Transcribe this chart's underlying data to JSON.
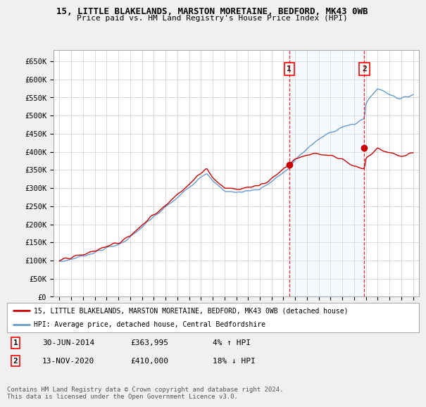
{
  "title": "15, LITTLE BLAKELANDS, MARSTON MORETAINE, BEDFORD, MK43 0WB",
  "subtitle": "Price paid vs. HM Land Registry's House Price Index (HPI)",
  "yticks": [
    0,
    50000,
    100000,
    150000,
    200000,
    250000,
    300000,
    350000,
    400000,
    450000,
    500000,
    550000,
    600000,
    650000
  ],
  "ytick_labels": [
    "£0",
    "£50K",
    "£100K",
    "£150K",
    "£200K",
    "£250K",
    "£300K",
    "£350K",
    "£400K",
    "£450K",
    "£500K",
    "£550K",
    "£600K",
    "£650K"
  ],
  "ylim": [
    0,
    680000
  ],
  "sale1_date_str": "30-JUN-2014",
  "sale1_price": 363995,
  "sale1_hpi_pct": "4% ↑ HPI",
  "sale1_x": 2014.5,
  "sale2_date_str": "13-NOV-2020",
  "sale2_price": 410000,
  "sale2_hpi_pct": "18% ↓ HPI",
  "sale2_x": 2020.87,
  "legend_line1": "15, LITTLE BLAKELANDS, MARSTON MORETAINE, BEDFORD, MK43 0WB (detached house)",
  "legend_line2": "HPI: Average price, detached house, Central Bedfordshire",
  "footnote": "Contains HM Land Registry data © Crown copyright and database right 2024.\nThis data is licensed under the Open Government Licence v3.0.",
  "property_color": "#cc0000",
  "hpi_color": "#6699cc",
  "shade_color": "#ddeeff",
  "background_color": "#f0f0f0",
  "plot_bg_color": "#ffffff",
  "grid_color": "#cccccc"
}
